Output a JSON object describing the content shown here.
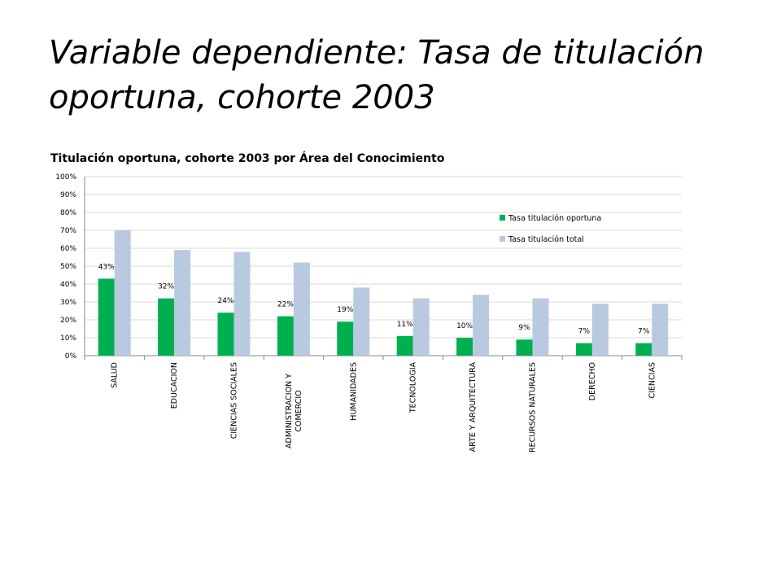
{
  "slide": {
    "title": "Variable dependiente: Tasa de titulación oportuna, cohorte 2003"
  },
  "colors": {
    "oportuna": "#00b050",
    "total": "#b9c9df",
    "grid": "#d9d9d9",
    "axis": "#868686"
  },
  "chart_data": {
    "type": "bar",
    "title": "Titulación oportuna, cohorte 2003 por Área del Conocimiento",
    "categories": [
      "SALUD",
      "EDUCACION",
      "CIENCIAS SOCIALES",
      "ADMINISTRACION Y COMERCIO",
      "HUMANIDADES",
      "TECNOLOGIA",
      "ARTE Y ARQUITECTURA",
      "RECURSOS NATURALES",
      "DERECHO",
      "CIENCIAS"
    ],
    "series": [
      {
        "name": "Tasa titulación oportuna",
        "values": [
          43,
          32,
          24,
          22,
          19,
          11,
          10,
          9,
          7,
          7
        ],
        "labels": [
          "43%",
          "32%",
          "24%",
          "22%",
          "19%",
          "11%",
          "10%",
          "9%",
          "7%",
          "7%"
        ]
      },
      {
        "name": "Tasa titulación total",
        "values": [
          70,
          59,
          58,
          52,
          38,
          32,
          34,
          32,
          29,
          29
        ]
      }
    ],
    "y_ticks": [
      "0%",
      "10%",
      "20%",
      "30%",
      "40%",
      "50%",
      "60%",
      "70%",
      "80%",
      "90%",
      "100%"
    ],
    "ylim": [
      0,
      100
    ],
    "grid": true,
    "legend_position": "top-right"
  }
}
